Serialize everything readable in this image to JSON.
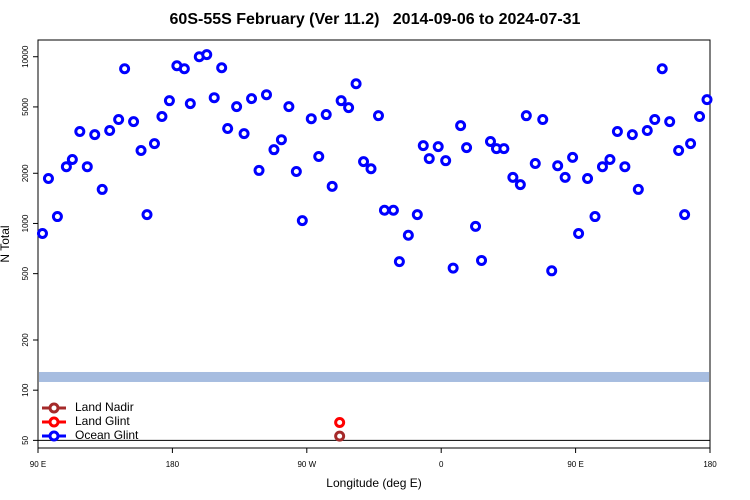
{
  "chart_data": {
    "type": "scatter",
    "title": "60S-55S February (Ver 11.2)   2014-09-06 to 2024-07-31",
    "x_label": "Longitude (deg E)",
    "y_label": "N Total",
    "xlim": [
      90,
      540
    ],
    "xticks": [
      {
        "value": 90,
        "label": "90 E"
      },
      {
        "value": 180,
        "label": "180"
      },
      {
        "value": 270,
        "label": "90 W"
      },
      {
        "value": 360,
        "label": "0"
      },
      {
        "value": 450,
        "label": "90 E"
      },
      {
        "value": 540,
        "label": "180"
      }
    ],
    "ylim": [
      45,
      12600
    ],
    "ylog": true,
    "yticks": [
      50,
      100,
      200,
      500,
      1000,
      2000,
      5000,
      10000
    ],
    "reference_line": 50,
    "band": {
      "value": 120,
      "color": "#a7bde0"
    },
    "legend": "bottom-left",
    "series": [
      {
        "name": "Land Nadir",
        "color": "#a52a2a",
        "x": [
          292
        ],
        "values": [
          53
        ]
      },
      {
        "name": "Land Glint",
        "color": "#ff0000",
        "x": [
          292
        ],
        "values": [
          64
        ]
      },
      {
        "name": "Ocean Glint",
        "color": "#0000ff",
        "x": [
          93,
          97,
          103,
          109,
          113,
          118,
          123,
          128,
          133,
          138,
          144,
          148,
          154,
          159,
          163,
          168,
          173,
          178,
          183,
          188,
          192,
          198,
          203,
          208,
          213,
          217,
          223,
          228,
          233,
          238,
          243,
          248,
          253,
          258,
          263,
          267,
          273,
          278,
          283,
          287,
          293,
          298,
          303,
          308,
          313,
          318,
          322,
          328,
          332,
          338,
          344,
          348,
          352,
          358,
          363,
          368,
          373,
          377,
          383,
          387,
          393,
          397,
          402,
          408,
          413,
          417,
          423,
          428,
          434,
          438,
          443,
          448,
          452,
          458,
          463,
          468,
          473,
          478,
          483,
          488,
          492,
          498,
          503,
          508,
          513,
          519,
          523,
          527,
          533,
          538
        ],
        "values": [
          870,
          1860,
          1100,
          2190,
          2420,
          3560,
          2190,
          3410,
          1600,
          3610,
          4200,
          8470,
          4080,
          2740,
          1130,
          3010,
          4380,
          5450,
          8830,
          8470,
          5230,
          10000,
          10300,
          5680,
          8590,
          3710,
          5020,
          3460,
          5610,
          2080,
          5920,
          2770,
          3180,
          5020,
          2050,
          1040,
          4250,
          2520,
          4500,
          1670,
          5450,
          4950,
          6890,
          2350,
          2130,
          4430,
          1200,
          1200,
          590,
          850,
          1130,
          2930,
          2450,
          2890,
          2380,
          540,
          3860,
          2850,
          960,
          600,
          3100,
          2810,
          2810,
          1890,
          1710,
          4430,
          2290,
          4200,
          520,
          2220,
          1890,
          2490,
          870,
          1860,
          1100,
          2190,
          2420,
          3560,
          2190,
          3410,
          1600,
          3610,
          4200,
          8470,
          4080,
          2740,
          1130,
          3010,
          4380,
          5530
        ]
      }
    ]
  }
}
